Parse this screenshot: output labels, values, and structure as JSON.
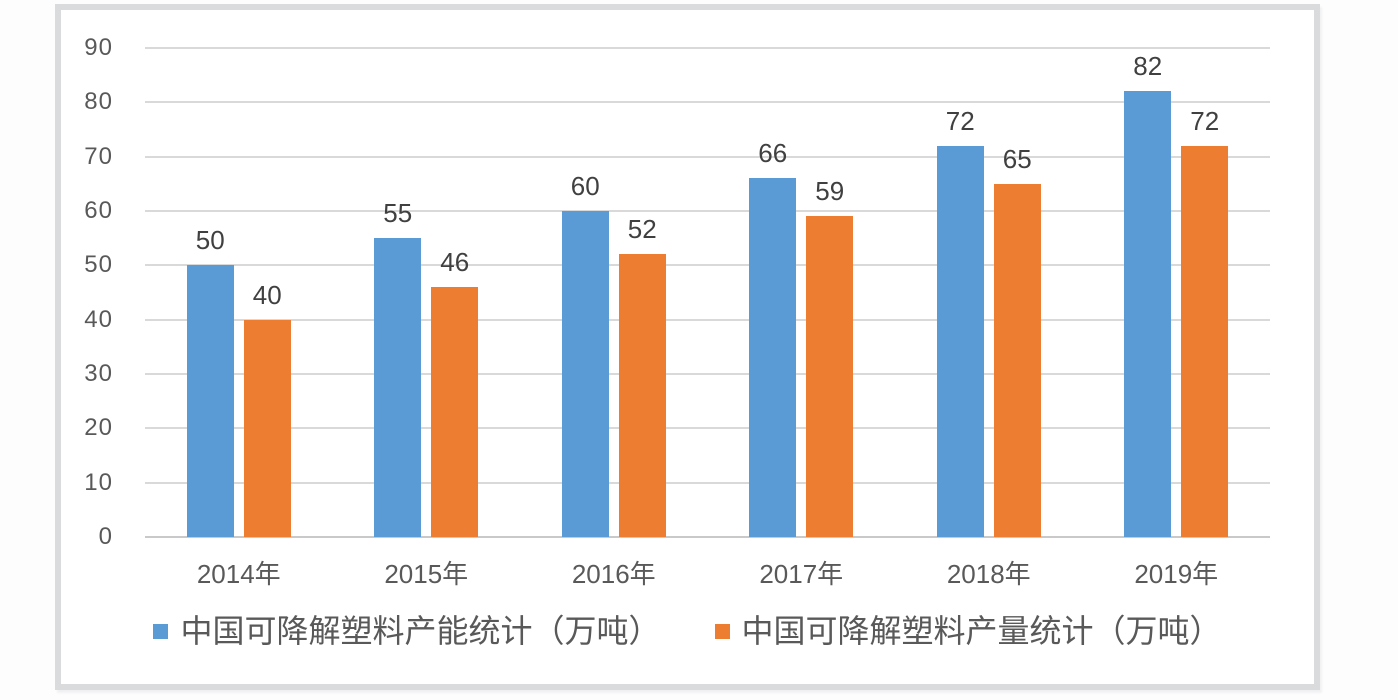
{
  "chart_data": {
    "type": "bar",
    "title": "",
    "categories": [
      "2014年",
      "2015年",
      "2016年",
      "2017年",
      "2018年",
      "2019年"
    ],
    "series": [
      {
        "name": "中国可降解塑料产能统计（万吨）",
        "color": "#5B9BD5",
        "values": [
          50,
          55,
          60,
          66,
          72,
          82
        ]
      },
      {
        "name": "中国可降解塑料产量统计（万吨）",
        "color": "#ED7D31",
        "values": [
          40,
          46,
          52,
          59,
          65,
          72
        ]
      }
    ],
    "xlabel": "",
    "ylabel": "",
    "ylim": [
      0,
      90
    ],
    "yticks": [
      0,
      10,
      20,
      30,
      40,
      50,
      60,
      70,
      80,
      90
    ],
    "grid": true,
    "data_labels": true,
    "legend_position": "bottom"
  },
  "style": {
    "gridline_color": "#D9D9D9",
    "axis_label_color": "#595959",
    "data_label_color": "#404040",
    "frame_border_color": "#D9DBDC",
    "background_color": "#FFFFFF"
  }
}
